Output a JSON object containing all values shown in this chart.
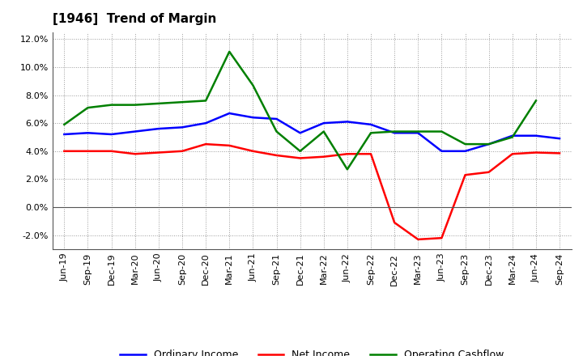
{
  "title": "[1946]  Trend of Margin",
  "x_labels": [
    "Jun-19",
    "Sep-19",
    "Dec-19",
    "Mar-20",
    "Jun-20",
    "Sep-20",
    "Dec-20",
    "Mar-21",
    "Jun-21",
    "Sep-21",
    "Dec-21",
    "Mar-22",
    "Jun-22",
    "Sep-22",
    "Dec-22",
    "Mar-23",
    "Jun-23",
    "Sep-23",
    "Dec-23",
    "Mar-24",
    "Jun-24",
    "Sep-24"
  ],
  "ordinary_income": [
    5.2,
    5.3,
    5.2,
    5.4,
    5.6,
    5.7,
    6.0,
    6.7,
    6.4,
    6.3,
    5.3,
    6.0,
    6.1,
    5.9,
    5.3,
    5.3,
    4.0,
    4.0,
    4.5,
    5.1,
    5.1,
    4.9
  ],
  "net_income": [
    4.0,
    4.0,
    4.0,
    3.8,
    3.9,
    4.0,
    4.5,
    4.4,
    4.0,
    3.7,
    3.5,
    3.6,
    3.8,
    3.8,
    -1.1,
    -2.3,
    -2.2,
    2.3,
    2.5,
    3.8,
    3.9,
    3.85
  ],
  "operating_cashflow": [
    5.9,
    7.1,
    7.3,
    7.3,
    7.4,
    7.5,
    7.6,
    11.1,
    8.7,
    5.4,
    4.0,
    5.4,
    2.7,
    5.3,
    5.4,
    5.4,
    5.4,
    4.5,
    4.5,
    5.0,
    7.6,
    null
  ],
  "ordinary_income_color": "#0000FF",
  "net_income_color": "#FF0000",
  "operating_cashflow_color": "#008000",
  "ylim": [
    -3.0,
    12.5
  ],
  "yticks": [
    -2.0,
    0.0,
    2.0,
    4.0,
    6.0,
    8.0,
    10.0,
    12.0
  ],
  "bg_color": "#FFFFFF",
  "plot_bg_color": "#FFFFFF",
  "grid_color": "#999999",
  "legend_labels": [
    "Ordinary Income",
    "Net Income",
    "Operating Cashflow"
  ],
  "title_fontsize": 11,
  "tick_fontsize": 8
}
